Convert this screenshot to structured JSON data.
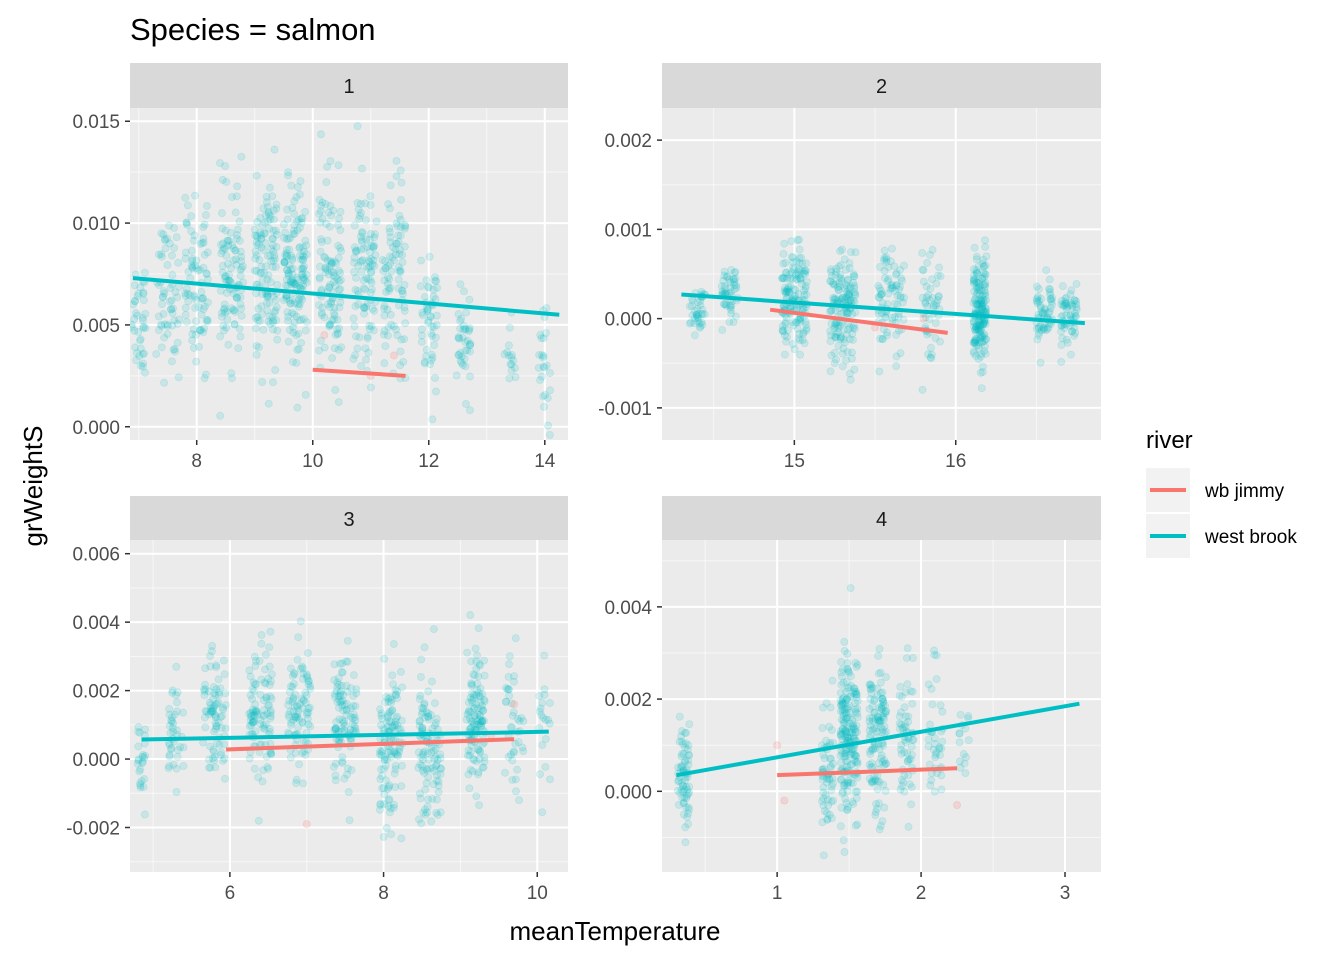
{
  "colors": {
    "wb_jimmy": "#F8766D",
    "west_brook": "#00BFC4",
    "panel_bg": "#EBEBEB",
    "strip_bg": "#D9D9D9",
    "grid": "#FFFFFF",
    "tick_text": "#4D4D4D"
  },
  "chart_data": {
    "type": "scatter",
    "title": "Species = salmon",
    "xlabel": "meanTemperature",
    "ylabel": "grWeightS",
    "legend": {
      "title": "river",
      "position": "right",
      "entries": [
        {
          "label": "wb jimmy",
          "color": "#F8766D"
        },
        {
          "label": "west brook",
          "color": "#00BFC4"
        }
      ]
    },
    "grid": true,
    "facets": [
      {
        "strip": "1",
        "xlim": [
          6.85,
          14.4
        ],
        "ylim": [
          -0.00065,
          0.01565
        ],
        "xticks": [
          8,
          10,
          12,
          14
        ],
        "yticks": [
          0.0,
          0.005,
          0.01,
          0.015
        ],
        "ytick_labels": [
          "0.000",
          "0.005",
          "0.010",
          "0.015"
        ],
        "clusters": [
          {
            "x": 7.0,
            "spread": 0.12,
            "ymean": 0.0055,
            "ysd": 0.0016,
            "n": 40
          },
          {
            "x": 7.5,
            "spread": 0.2,
            "ymean": 0.0065,
            "ysd": 0.0018,
            "n": 60
          },
          {
            "x": 8.0,
            "spread": 0.2,
            "ymean": 0.007,
            "ysd": 0.002,
            "n": 80
          },
          {
            "x": 8.6,
            "spread": 0.2,
            "ymean": 0.0075,
            "ysd": 0.002,
            "n": 100
          },
          {
            "x": 9.2,
            "spread": 0.2,
            "ymean": 0.0075,
            "ysd": 0.0022,
            "n": 120
          },
          {
            "x": 9.7,
            "spread": 0.2,
            "ymean": 0.0072,
            "ysd": 0.0022,
            "n": 140
          },
          {
            "x": 10.3,
            "spread": 0.2,
            "ymean": 0.0073,
            "ysd": 0.0023,
            "n": 110
          },
          {
            "x": 10.9,
            "spread": 0.2,
            "ymean": 0.0075,
            "ysd": 0.0023,
            "n": 100
          },
          {
            "x": 11.4,
            "spread": 0.2,
            "ymean": 0.0072,
            "ysd": 0.0023,
            "n": 90
          },
          {
            "x": 12.0,
            "spread": 0.15,
            "ymean": 0.0055,
            "ysd": 0.0018,
            "n": 50
          },
          {
            "x": 12.6,
            "spread": 0.12,
            "ymean": 0.004,
            "ysd": 0.0016,
            "n": 40
          },
          {
            "x": 13.4,
            "spread": 0.1,
            "ymean": 0.0037,
            "ysd": 0.0008,
            "n": 15
          },
          {
            "x": 14.0,
            "spread": 0.12,
            "ymean": 0.003,
            "ysd": 0.0013,
            "n": 25
          }
        ],
        "red_points": [
          [
            10.2,
            0.0045
          ],
          [
            11.4,
            0.0035
          ],
          [
            11.0,
            0.0025
          ]
        ],
        "lines": {
          "west_brook": [
            [
              6.9,
              0.0073
            ],
            [
              14.25,
              0.0055
            ]
          ],
          "wb_jimmy": [
            [
              10.0,
              0.0028
            ],
            [
              11.6,
              0.0025
            ]
          ]
        }
      },
      {
        "strip": "2",
        "xlim": [
          14.18,
          16.9
        ],
        "ylim": [
          -0.00136,
          0.00236
        ],
        "xticks": [
          15,
          16
        ],
        "yticks": [
          -0.001,
          0.0,
          0.001,
          0.002
        ],
        "ytick_labels": [
          "-0.001",
          "0.000",
          "0.001",
          "0.002"
        ],
        "clusters": [
          {
            "x": 14.4,
            "spread": 0.05,
            "ymean": 0.0001,
            "ysd": 0.00015,
            "n": 40
          },
          {
            "x": 14.6,
            "spread": 0.05,
            "ymean": 0.0002,
            "ysd": 0.00018,
            "n": 50
          },
          {
            "x": 15.0,
            "spread": 0.08,
            "ymean": 0.0002,
            "ysd": 0.0003,
            "n": 150
          },
          {
            "x": 15.3,
            "spread": 0.08,
            "ymean": 0.0001,
            "ysd": 0.0003,
            "n": 150
          },
          {
            "x": 15.6,
            "spread": 0.08,
            "ymean": 0.0002,
            "ysd": 0.00028,
            "n": 80
          },
          {
            "x": 15.85,
            "spread": 0.06,
            "ymean": 0.0002,
            "ysd": 0.0003,
            "n": 50
          },
          {
            "x": 16.15,
            "spread": 0.04,
            "ymean": 0.0001,
            "ysd": 0.0003,
            "n": 180
          },
          {
            "x": 16.55,
            "spread": 0.05,
            "ymean": 0.0,
            "ysd": 0.0002,
            "n": 60
          },
          {
            "x": 16.7,
            "spread": 0.05,
            "ymean": 0.0,
            "ysd": 0.0002,
            "n": 60
          }
        ],
        "red_points": [
          [
            15.5,
            -0.0001
          ],
          [
            15.8,
            0.0
          ]
        ],
        "lines": {
          "west_brook": [
            [
              14.3,
              0.00027
            ],
            [
              16.8,
              -5e-05
            ]
          ],
          "wb_jimmy": [
            [
              14.85,
              0.0001
            ],
            [
              15.95,
              -0.00016
            ]
          ]
        }
      },
      {
        "strip": "3",
        "xlim": [
          4.7,
          10.4
        ],
        "ylim": [
          -0.0033,
          0.0064
        ],
        "xticks": [
          6,
          8,
          10
        ],
        "yticks": [
          -0.002,
          0.0,
          0.002,
          0.004,
          0.006
        ],
        "ytick_labels": [
          "-0.002",
          "0.000",
          "0.002",
          "0.004",
          "0.006"
        ],
        "clusters": [
          {
            "x": 4.85,
            "spread": 0.05,
            "ymean": 0.0,
            "ysd": 0.0007,
            "n": 25
          },
          {
            "x": 5.3,
            "spread": 0.1,
            "ymean": 0.0007,
            "ysd": 0.0008,
            "n": 40
          },
          {
            "x": 5.8,
            "spread": 0.15,
            "ymean": 0.0012,
            "ysd": 0.001,
            "n": 80
          },
          {
            "x": 6.4,
            "spread": 0.15,
            "ymean": 0.0012,
            "ysd": 0.001,
            "n": 100
          },
          {
            "x": 6.9,
            "spread": 0.15,
            "ymean": 0.0012,
            "ysd": 0.0009,
            "n": 90
          },
          {
            "x": 7.5,
            "spread": 0.15,
            "ymean": 0.0012,
            "ysd": 0.0009,
            "n": 100
          },
          {
            "x": 8.1,
            "spread": 0.15,
            "ymean": 0.0006,
            "ysd": 0.0011,
            "n": 120
          },
          {
            "x": 8.6,
            "spread": 0.15,
            "ymean": 0.0004,
            "ysd": 0.0012,
            "n": 110
          },
          {
            "x": 9.2,
            "spread": 0.12,
            "ymean": 0.0012,
            "ysd": 0.0011,
            "n": 120
          },
          {
            "x": 9.7,
            "spread": 0.12,
            "ymean": 0.0009,
            "ysd": 0.001,
            "n": 40
          },
          {
            "x": 10.1,
            "spread": 0.08,
            "ymean": 0.0011,
            "ysd": 0.001,
            "n": 20
          }
        ],
        "red_points": [
          [
            7.0,
            -0.0019
          ],
          [
            9.7,
            0.0016
          ],
          [
            9.4,
            0.0007
          ]
        ],
        "lines": {
          "west_brook": [
            [
              4.85,
              0.00057
            ],
            [
              10.15,
              0.0008
            ]
          ],
          "wb_jimmy": [
            [
              5.95,
              0.00028
            ],
            [
              9.7,
              0.00058
            ]
          ]
        }
      },
      {
        "strip": "4",
        "xlim": [
          0.2,
          3.25
        ],
        "ylim": [
          -0.00175,
          0.00545
        ],
        "xticks": [
          1,
          2,
          3
        ],
        "yticks": [
          0.0,
          0.002,
          0.004
        ],
        "ytick_labels": [
          "0.000",
          "0.002",
          "0.004"
        ],
        "clusters": [
          {
            "x": 0.35,
            "spread": 0.04,
            "ymean": 0.0004,
            "ysd": 0.0005,
            "n": 70
          },
          {
            "x": 1.35,
            "spread": 0.04,
            "ymean": 0.0003,
            "ysd": 0.0008,
            "n": 60
          },
          {
            "x": 1.5,
            "spread": 0.06,
            "ymean": 0.0012,
            "ysd": 0.0009,
            "n": 200
          },
          {
            "x": 1.7,
            "spread": 0.06,
            "ymean": 0.0011,
            "ysd": 0.0008,
            "n": 120
          },
          {
            "x": 1.9,
            "spread": 0.05,
            "ymean": 0.0012,
            "ysd": 0.0008,
            "n": 60
          },
          {
            "x": 2.1,
            "spread": 0.05,
            "ymean": 0.0012,
            "ysd": 0.0008,
            "n": 40
          },
          {
            "x": 2.3,
            "spread": 0.04,
            "ymean": 0.0009,
            "ysd": 0.0005,
            "n": 15
          }
        ],
        "red_points": [
          [
            1.0,
            0.001
          ],
          [
            1.05,
            -0.0002
          ],
          [
            2.25,
            -0.0003
          ]
        ],
        "lines": {
          "west_brook": [
            [
              0.3,
              0.00035
            ],
            [
              3.1,
              0.0019
            ]
          ],
          "wb_jimmy": [
            [
              1.0,
              0.00035
            ],
            [
              2.25,
              0.0005
            ]
          ]
        }
      }
    ]
  }
}
